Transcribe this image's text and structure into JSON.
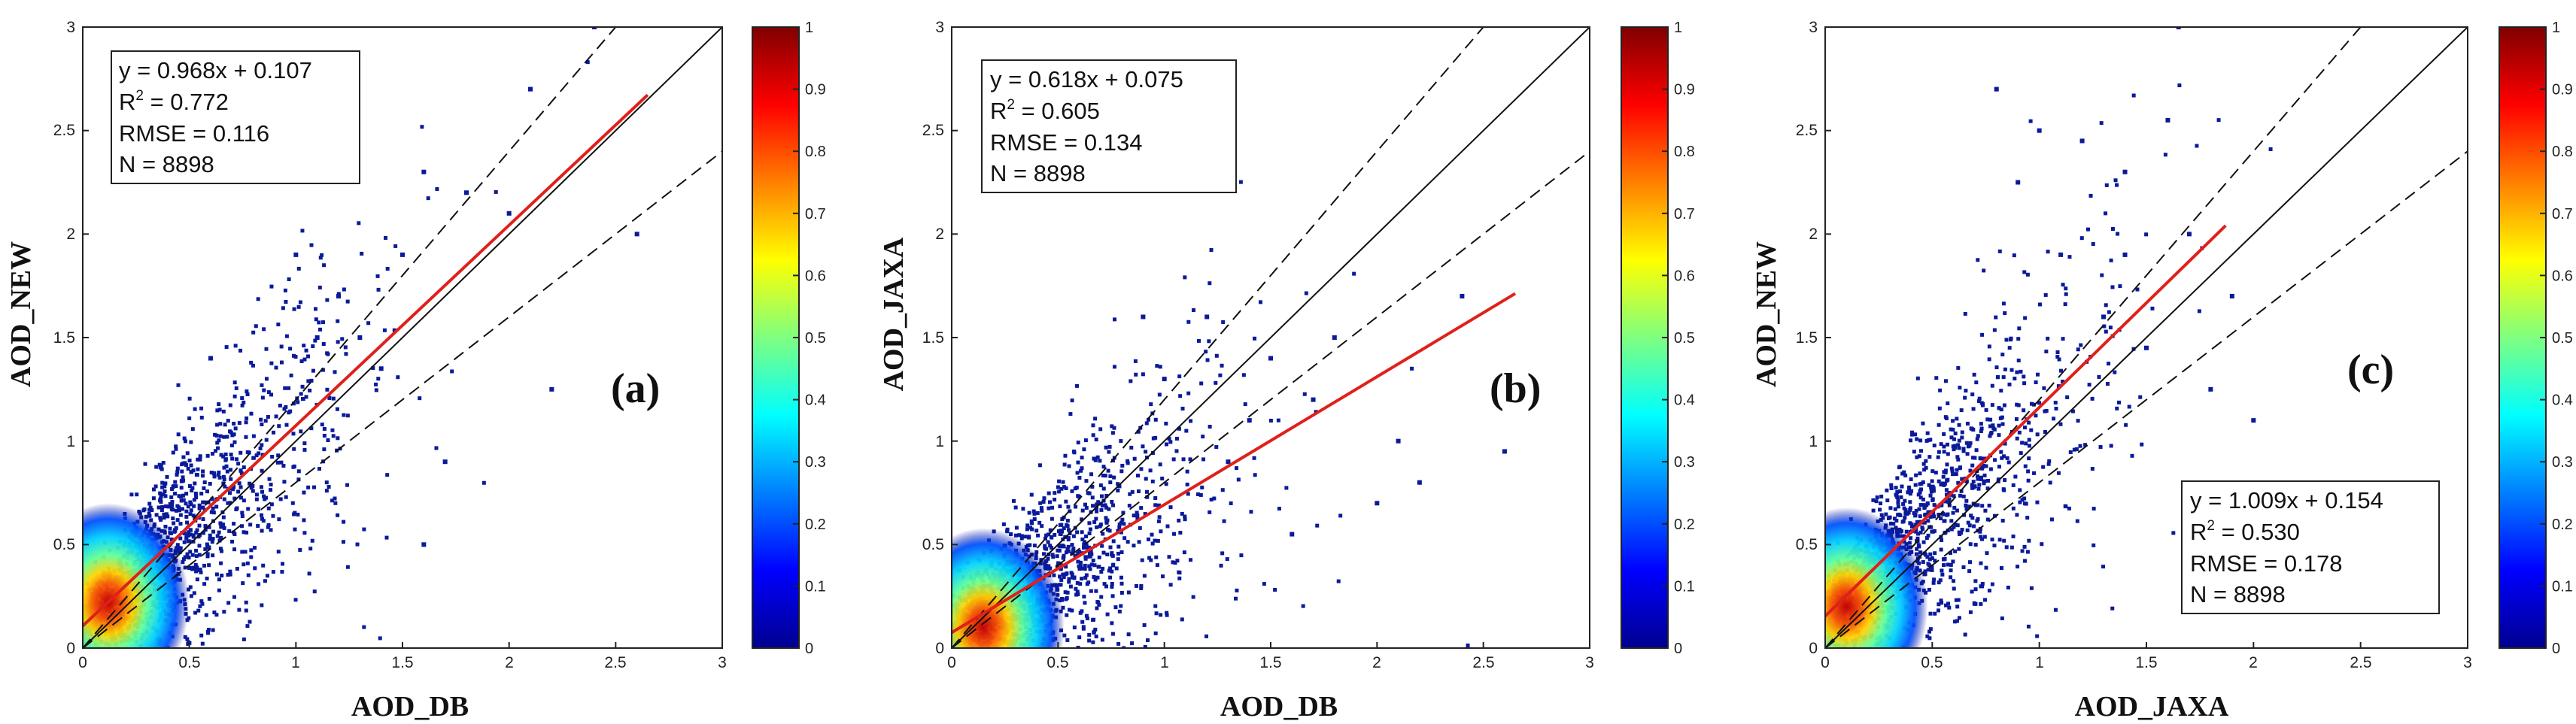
{
  "chart_data": [
    {
      "type": "scatter",
      "panel": "(a)",
      "xlabel": "AOD_DB",
      "ylabel": "AOD_NEW",
      "xlim": [
        0,
        3
      ],
      "ylim": [
        0,
        3
      ],
      "ticks": [
        "0",
        "0.5",
        "1",
        "1.5",
        "2",
        "2.5",
        "3"
      ],
      "stats": {
        "equation": "y = 0.968x + 0.107",
        "r2_label": "R",
        "r2_sup": "2",
        "r2_value": " = 0.772",
        "rmse": "RMSE = 0.116",
        "n": "N = 8898"
      },
      "stats_position": "top-left",
      "fit": {
        "slope": 0.968,
        "intercept": 0.107,
        "x_range": [
          0,
          2.65
        ]
      },
      "reference_lines": [
        "1:1",
        "y = 1.2x",
        "y = 0.8x"
      ],
      "density_core": {
        "x": 0.12,
        "y": 0.22
      },
      "sample_points": [
        [
          1.3,
          1.5
        ],
        [
          1.5,
          1.9
        ],
        [
          1.6,
          2.3
        ],
        [
          1.8,
          2.2
        ],
        [
          2.0,
          2.1
        ],
        [
          2.1,
          2.7
        ],
        [
          2.2,
          1.25
        ],
        [
          2.4,
          3.0
        ],
        [
          2.6,
          2.0
        ],
        [
          1.6,
          0.5
        ],
        [
          1.7,
          0.9
        ],
        [
          0.6,
          1.4
        ],
        [
          1.1,
          1.5
        ],
        [
          1.2,
          1.7
        ],
        [
          1.4,
          1.35
        ],
        [
          1.0,
          1.9
        ]
      ],
      "colorbar": {
        "min": 0,
        "max": 1,
        "ticks": [
          "0",
          "0.1",
          "0.2",
          "0.3",
          "0.4",
          "0.5",
          "0.6",
          "0.7",
          "0.8",
          "0.9",
          "1"
        ]
      }
    },
    {
      "type": "scatter",
      "panel": "(b)",
      "xlabel": "AOD_DB",
      "ylabel": "AOD_JAXA",
      "xlim": [
        0,
        3
      ],
      "ylim": [
        0,
        3
      ],
      "ticks": [
        "0",
        "0.5",
        "1",
        "1.5",
        "2",
        "2.5",
        "3"
      ],
      "stats": {
        "equation": "y = 0.618x + 0.075",
        "r2_label": "R",
        "r2_sup": "2",
        "r2_value": " = 0.605",
        "rmse": "RMSE = 0.134",
        "n": "N = 8898"
      },
      "stats_position": "top-left",
      "fit": {
        "slope": 0.618,
        "intercept": 0.075,
        "x_range": [
          0,
          2.65
        ]
      },
      "reference_lines": [
        "1:1",
        "y = 1.2x",
        "y = 0.8x"
      ],
      "density_core": {
        "x": 0.15,
        "y": 0.1
      },
      "sample_points": [
        [
          1.2,
          1.6
        ],
        [
          1.5,
          1.4
        ],
        [
          1.4,
          1.1
        ],
        [
          1.7,
          1.2
        ],
        [
          2.1,
          1.0
        ],
        [
          2.2,
          0.8
        ],
        [
          2.4,
          1.7
        ],
        [
          2.6,
          0.95
        ],
        [
          2.0,
          0.7
        ],
        [
          1.8,
          1.5
        ],
        [
          0.9,
          1.6
        ],
        [
          1.0,
          1.3
        ],
        [
          1.6,
          0.55
        ],
        [
          1.3,
          0.9
        ]
      ],
      "colorbar": {
        "min": 0,
        "max": 1,
        "ticks": [
          "0",
          "0.1",
          "0.2",
          "0.3",
          "0.4",
          "0.5",
          "0.6",
          "0.7",
          "0.8",
          "0.9",
          "1"
        ]
      }
    },
    {
      "type": "scatter",
      "panel": "(c)",
      "xlabel": "AOD_JAXA",
      "ylabel": "AOD_NEW",
      "xlim": [
        0,
        3
      ],
      "ylim": [
        0,
        3
      ],
      "ticks": [
        "0",
        "0.5",
        "1",
        "1.5",
        "2",
        "2.5",
        "3"
      ],
      "stats": {
        "equation": "y = 1.009x + 0.154",
        "r2_label": "R",
        "r2_sup": "2",
        "r2_value": " = 0.530",
        "rmse": "RMSE = 0.178",
        "n": "N = 8898"
      },
      "stats_position": "bottom-right",
      "fit": {
        "slope": 1.009,
        "intercept": 0.154,
        "x_range": [
          0,
          1.87
        ]
      },
      "reference_lines": [
        "1:1",
        "y = 1.2x",
        "y = 0.8x"
      ],
      "density_core": {
        "x": 0.1,
        "y": 0.2
      },
      "sample_points": [
        [
          0.8,
          2.7
        ],
        [
          1.0,
          2.5
        ],
        [
          1.2,
          2.45
        ],
        [
          1.4,
          2.3
        ],
        [
          1.6,
          2.55
        ],
        [
          1.7,
          2.0
        ],
        [
          1.65,
          3.0
        ],
        [
          0.9,
          2.25
        ],
        [
          1.1,
          1.9
        ],
        [
          1.3,
          1.6
        ],
        [
          1.5,
          1.45
        ],
        [
          1.9,
          1.7
        ],
        [
          2.0,
          1.1
        ],
        [
          1.8,
          1.25
        ],
        [
          1.4,
          1.9
        ]
      ],
      "colorbar": {
        "min": 0,
        "max": 1,
        "ticks": [
          "0",
          "0.1",
          "0.2",
          "0.3",
          "0.4",
          "0.5",
          "0.6",
          "0.7",
          "0.8",
          "0.9",
          "1"
        ]
      }
    }
  ]
}
